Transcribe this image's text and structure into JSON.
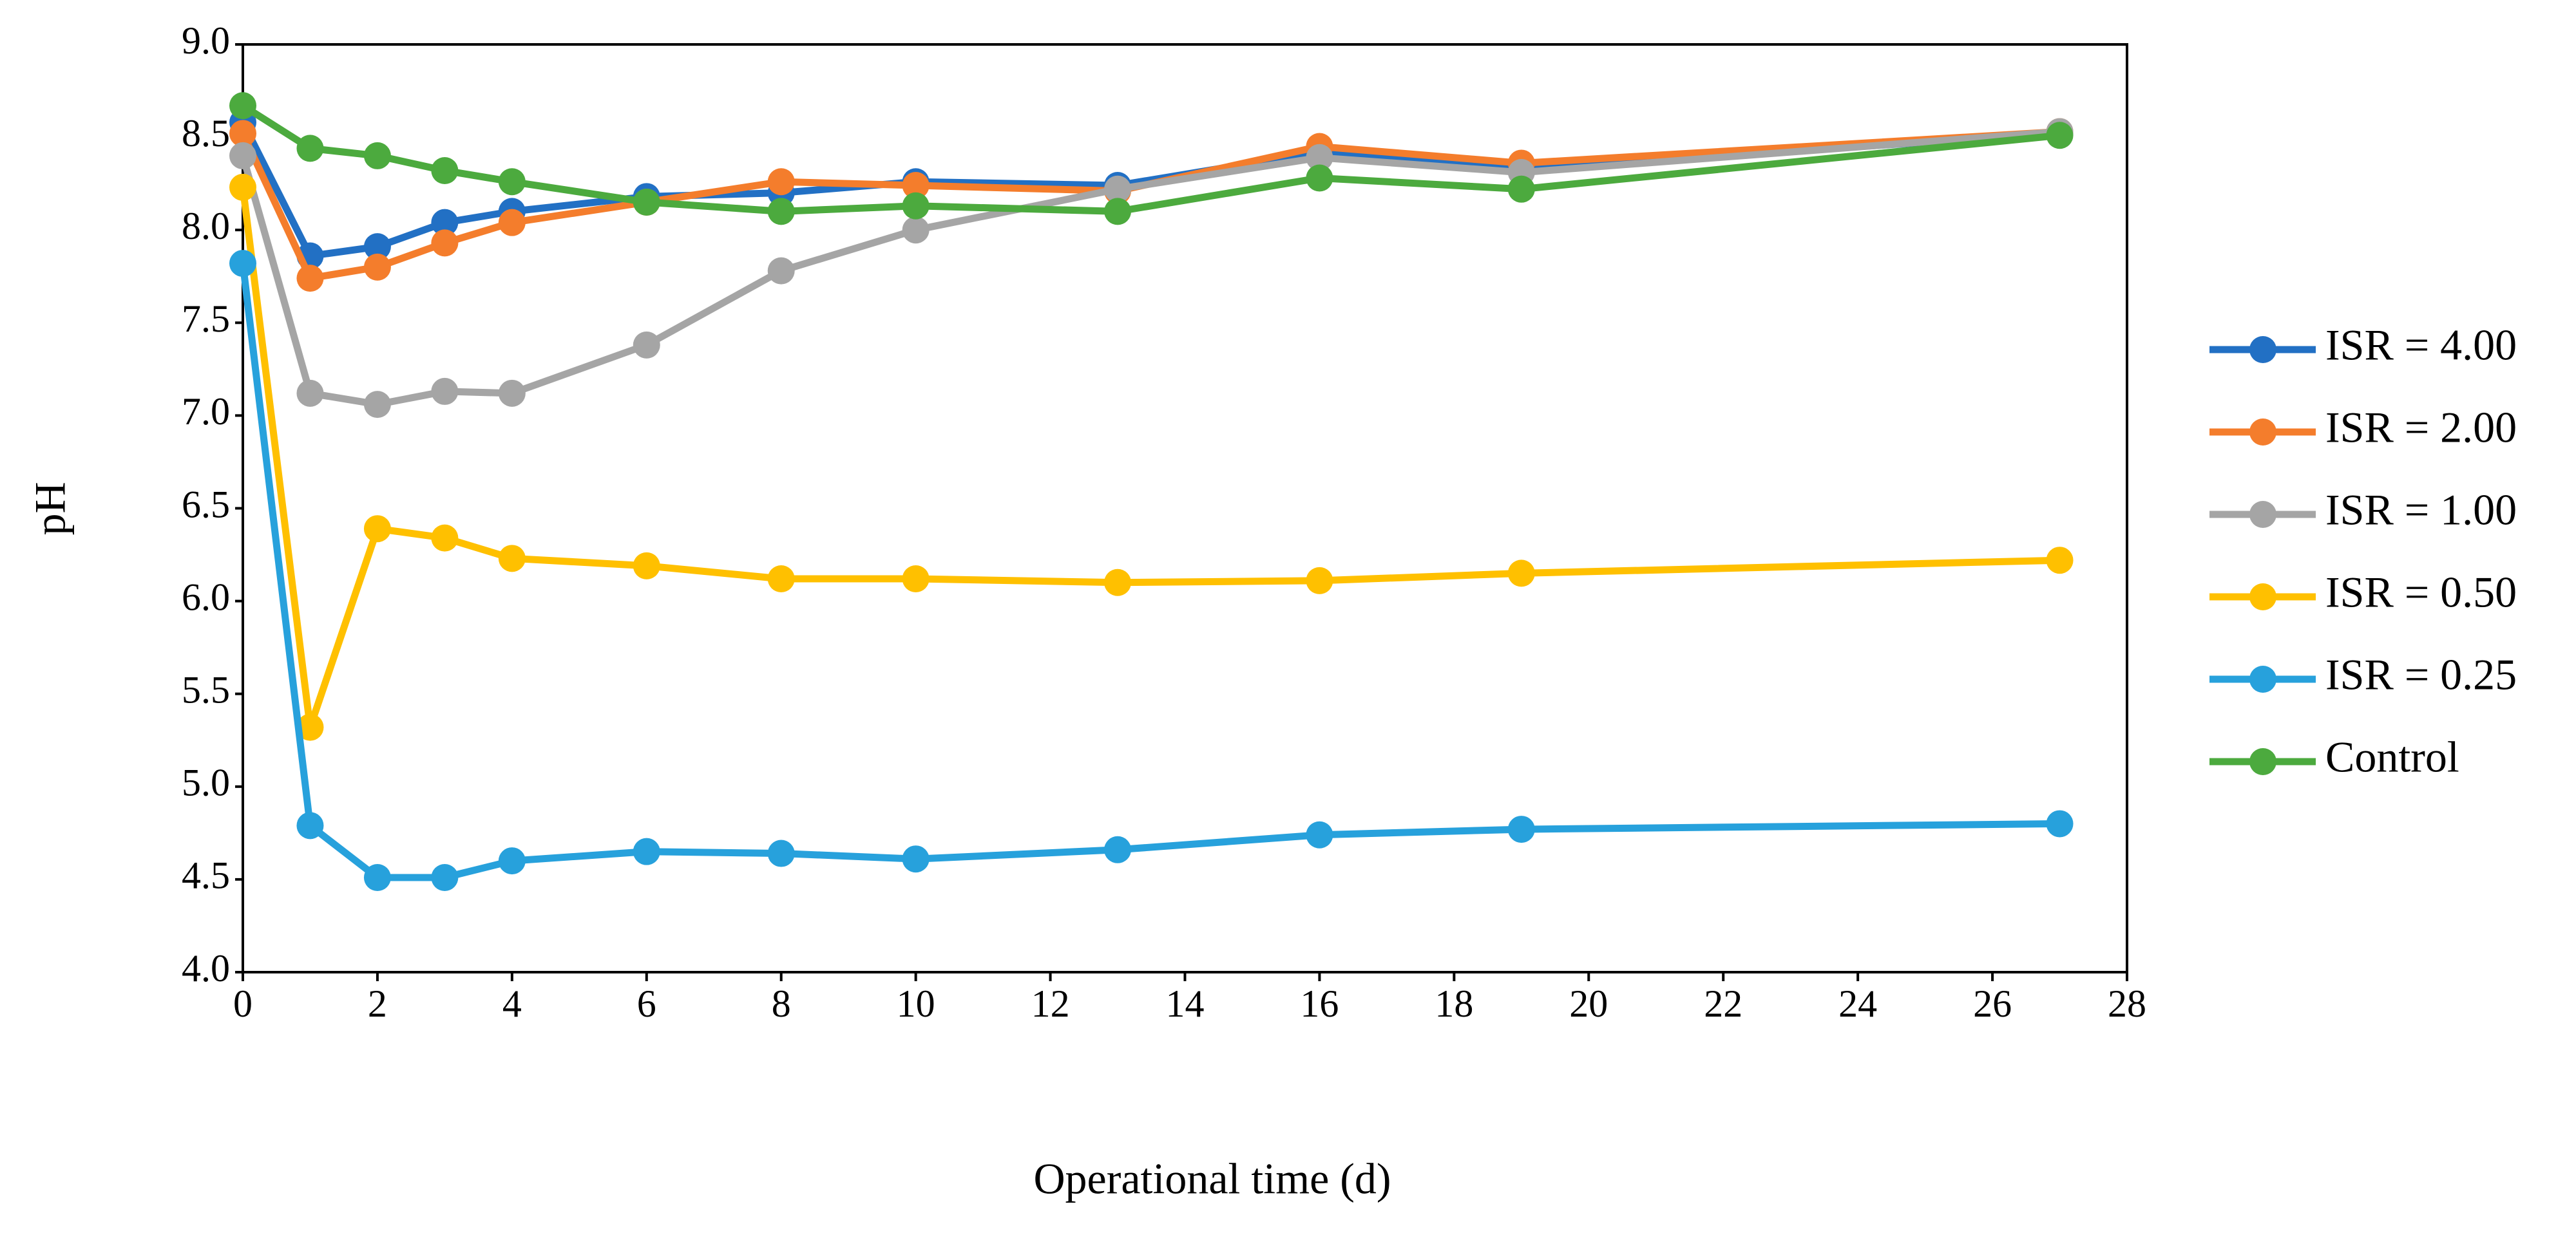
{
  "chart_data": {
    "type": "line",
    "x_label": "Operational time (d)",
    "y_label": "pH",
    "x": [
      0,
      1,
      2,
      3,
      4,
      6,
      8,
      10,
      13,
      16,
      19,
      27
    ],
    "series": [
      {
        "name": "ISR = 4.00",
        "color": "#2270c4",
        "values": [
          8.58,
          7.86,
          7.91,
          8.04,
          8.1,
          8.18,
          8.2,
          8.26,
          8.24,
          8.42,
          8.33,
          8.52
        ]
      },
      {
        "name": "ISR = 2.00",
        "color": "#f47d2c",
        "values": [
          8.52,
          7.74,
          7.8,
          7.93,
          8.04,
          8.15,
          8.26,
          8.24,
          8.21,
          8.45,
          8.36,
          8.53
        ]
      },
      {
        "name": "ISR = 1.00",
        "color": "#a5a5a5",
        "values": [
          8.4,
          7.12,
          7.06,
          7.13,
          7.12,
          7.38,
          7.78,
          8.0,
          8.22,
          8.39,
          8.31,
          8.53
        ]
      },
      {
        "name": "ISR = 0.50",
        "color": "#ffc000",
        "values": [
          8.23,
          5.32,
          6.39,
          6.34,
          6.23,
          6.19,
          6.12,
          6.12,
          6.1,
          6.11,
          6.15,
          6.22
        ]
      },
      {
        "name": "ISR = 0.25",
        "color": "#27a1dc",
        "values": [
          7.82,
          4.79,
          4.51,
          4.51,
          4.6,
          4.65,
          4.64,
          4.61,
          4.66,
          4.74,
          4.77,
          4.8
        ]
      },
      {
        "name": "Control",
        "color": "#4caa3e",
        "values": [
          8.67,
          8.44,
          8.4,
          8.32,
          8.26,
          8.15,
          8.1,
          8.13,
          8.1,
          8.28,
          8.22,
          8.51
        ]
      }
    ],
    "xlim": [
      0,
      28
    ],
    "xticks": [
      0,
      2,
      4,
      6,
      8,
      10,
      12,
      14,
      16,
      18,
      20,
      22,
      24,
      26,
      28
    ],
    "ylim": [
      4,
      9
    ],
    "yticks": [
      {
        "value": 4,
        "label": "4.0"
      },
      {
        "value": 4.5,
        "label": "4.5"
      },
      {
        "value": 5,
        "label": "5.0"
      },
      {
        "value": 5.5,
        "label": "5.5"
      },
      {
        "value": 6,
        "label": "6.0"
      },
      {
        "value": 6.5,
        "label": "6.5"
      },
      {
        "value": 7,
        "label": "7.0"
      },
      {
        "value": 7.5,
        "label": "7.5"
      },
      {
        "value": 8,
        "label": "8.0"
      },
      {
        "value": 8.5,
        "label": "8.5"
      },
      {
        "value": 9,
        "label": "9.0"
      }
    ],
    "grid": false,
    "legend": "right"
  }
}
